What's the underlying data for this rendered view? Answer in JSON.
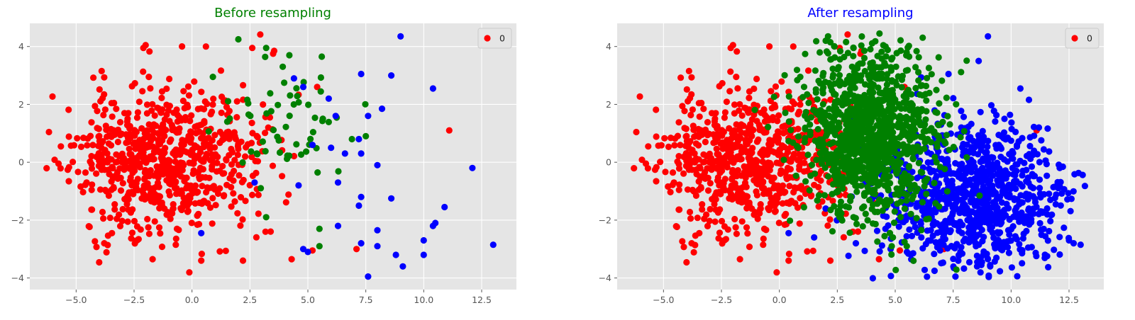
{
  "colors": {
    "background": "#e5e5e5",
    "grid": "#ffffff",
    "class_0": "#ff0000",
    "class_1": "#008000",
    "class_2": "#0000ff"
  },
  "chart_data": [
    {
      "type": "scatter",
      "title": "Before resampling",
      "title_color": "#008000",
      "xlim": [
        -7,
        14
      ],
      "ylim": [
        -4.4,
        4.8
      ],
      "xticks": [
        -5.0,
        -2.5,
        0.0,
        2.5,
        5.0,
        7.5,
        10.0,
        12.5
      ],
      "xtick_labels": [
        "−5.0",
        "−2.5",
        "0.0",
        "2.5",
        "5.0",
        "7.5",
        "10.0",
        "12.5"
      ],
      "yticks": [
        -4,
        -2,
        0,
        2,
        4
      ],
      "ytick_labels": [
        "−4",
        "−2",
        "0",
        "2",
        "4"
      ],
      "grid": true,
      "legend": {
        "position": "top-right",
        "entries": [
          {
            "label": "0",
            "color": "#ff0000"
          }
        ]
      },
      "series": [
        {
          "color": "#ff0000",
          "generator": {
            "count": 750,
            "cx": -1.2,
            "cy": 0.1,
            "sx": 2.0,
            "sy": 1.25,
            "seed": 11
          },
          "points": [
            [
              -2.1,
              3.95
            ],
            [
              0.6,
              4.0
            ],
            [
              -3.9,
              3.15
            ],
            [
              -1.7,
              -3.35
            ],
            [
              0.4,
              -3.4
            ],
            [
              2.2,
              -3.4
            ],
            [
              4.3,
              -3.35
            ],
            [
              5.2,
              -3.05
            ],
            [
              7.1,
              -3.0
            ],
            [
              -0.7,
              -2.85
            ],
            [
              11.1,
              1.1
            ],
            [
              5.4,
              2.6
            ],
            [
              3.5,
              3.75
            ],
            [
              2.6,
              3.95
            ]
          ]
        },
        {
          "color": "#008000",
          "generator": {
            "count": 55,
            "cx": 3.9,
            "cy": 1.4,
            "sx": 1.4,
            "sy": 1.2,
            "seed": 21
          },
          "points": [
            [
              2.0,
              4.25
            ],
            [
              3.2,
              3.95
            ],
            [
              4.2,
              3.7
            ],
            [
              5.6,
              3.65
            ],
            [
              0.9,
              2.95
            ],
            [
              5.5,
              -2.9
            ],
            [
              5.5,
              -2.3
            ],
            [
              3.2,
              -1.9
            ],
            [
              6.9,
              0.8
            ],
            [
              7.5,
              0.9
            ]
          ]
        },
        {
          "color": "#0000ff",
          "generator": {
            "count": 0,
            "cx": 0,
            "cy": 0,
            "sx": 1,
            "sy": 1,
            "seed": 1
          },
          "points": [
            [
              9.0,
              4.35
            ],
            [
              8.6,
              3.0
            ],
            [
              7.3,
              3.05
            ],
            [
              10.4,
              2.55
            ],
            [
              8.2,
              1.85
            ],
            [
              7.6,
              1.6
            ],
            [
              4.4,
              2.9
            ],
            [
              4.8,
              2.6
            ],
            [
              5.9,
              2.2
            ],
            [
              6.2,
              1.6
            ],
            [
              12.1,
              -0.2
            ],
            [
              8.0,
              -0.1
            ],
            [
              7.2,
              0.8
            ],
            [
              6.6,
              0.3
            ],
            [
              7.3,
              0.3
            ],
            [
              6.3,
              -0.7
            ],
            [
              7.2,
              -1.5
            ],
            [
              7.3,
              -1.2
            ],
            [
              8.6,
              -1.25
            ],
            [
              10.9,
              -1.55
            ],
            [
              6.3,
              -2.2
            ],
            [
              8.0,
              -2.35
            ],
            [
              10.5,
              -2.1
            ],
            [
              10.4,
              -2.2
            ],
            [
              10.0,
              -2.7
            ],
            [
              13.0,
              -2.85
            ],
            [
              7.3,
              -2.8
            ],
            [
              8.0,
              -2.9
            ],
            [
              8.8,
              -3.2
            ],
            [
              10.0,
              -3.2
            ],
            [
              9.1,
              -3.6
            ],
            [
              7.6,
              -3.95
            ],
            [
              4.8,
              -3.0
            ],
            [
              5.0,
              -3.1
            ],
            [
              0.4,
              -2.45
            ],
            [
              2.7,
              -0.7
            ],
            [
              4.6,
              -0.8
            ],
            [
              5.2,
              0.6
            ],
            [
              6.0,
              0.5
            ]
          ]
        }
      ]
    },
    {
      "type": "scatter",
      "title": "After resampling",
      "title_color": "#0000ff",
      "xlim": [
        -7,
        14
      ],
      "ylim": [
        -4.4,
        4.8
      ],
      "xticks": [
        -5.0,
        -2.5,
        0.0,
        2.5,
        5.0,
        7.5,
        10.0,
        12.5
      ],
      "xtick_labels": [
        "−5.0",
        "−2.5",
        "0.0",
        "2.5",
        "5.0",
        "7.5",
        "10.0",
        "12.5"
      ],
      "yticks": [
        -4,
        -2,
        0,
        2,
        4
      ],
      "ytick_labels": [
        "−4",
        "−2",
        "0",
        "2",
        "4"
      ],
      "grid": true,
      "legend": {
        "position": "top-right",
        "entries": [
          {
            "label": "0",
            "color": "#ff0000"
          }
        ]
      },
      "series": [
        {
          "color": "#ff0000",
          "generator": {
            "count": 750,
            "cx": -1.2,
            "cy": 0.1,
            "sx": 2.0,
            "sy": 1.25,
            "seed": 11
          },
          "points": [
            [
              -2.1,
              3.95
            ],
            [
              0.6,
              4.0
            ],
            [
              -3.9,
              3.15
            ],
            [
              -1.7,
              -3.35
            ],
            [
              0.4,
              -3.4
            ],
            [
              2.2,
              -3.4
            ],
            [
              4.3,
              -3.35
            ],
            [
              5.2,
              -3.05
            ],
            [
              7.1,
              -3.0
            ],
            [
              -0.7,
              -2.85
            ],
            [
              11.1,
              1.1
            ],
            [
              5.4,
              2.6
            ],
            [
              3.5,
              3.75
            ],
            [
              2.6,
              3.95
            ]
          ]
        },
        {
          "color": "#0000ff",
          "generator": {
            "count": 900,
            "cx": 8.3,
            "cy": -1.2,
            "sx": 1.9,
            "sy": 1.3,
            "seed": 33
          },
          "points": [
            [
              9.0,
              4.35
            ],
            [
              8.6,
              3.5
            ],
            [
              7.3,
              3.05
            ],
            [
              10.4,
              2.55
            ],
            [
              11.2,
              1.2
            ],
            [
              12.1,
              -0.2
            ],
            [
              13.0,
              -2.85
            ],
            [
              12.7,
              -2.8
            ],
            [
              12.5,
              -2.7
            ],
            [
              7.6,
              -3.95
            ],
            [
              9.1,
              -3.6
            ],
            [
              8.8,
              -3.2
            ],
            [
              4.8,
              -3.0
            ],
            [
              0.4,
              -2.45
            ],
            [
              1.5,
              -2.6
            ],
            [
              2.0,
              -1.6
            ],
            [
              3.3,
              -2.8
            ],
            [
              4.6,
              -0.8
            ]
          ]
        },
        {
          "color": "#008000",
          "generator": {
            "count": 1100,
            "cx": 3.9,
            "cy": 0.9,
            "sx": 1.45,
            "sy": 1.45,
            "seed": 44
          },
          "points": [
            [
              2.0,
              4.2
            ],
            [
              2.2,
              4.15
            ],
            [
              3.2,
              3.95
            ],
            [
              5.5,
              3.7
            ],
            [
              5.6,
              3.65
            ],
            [
              0.9,
              2.95
            ],
            [
              5.5,
              -2.9
            ],
            [
              5.4,
              -2.75
            ],
            [
              4.9,
              -2.6
            ],
            [
              3.2,
              -1.9
            ],
            [
              6.9,
              0.8
            ]
          ]
        }
      ]
    }
  ]
}
